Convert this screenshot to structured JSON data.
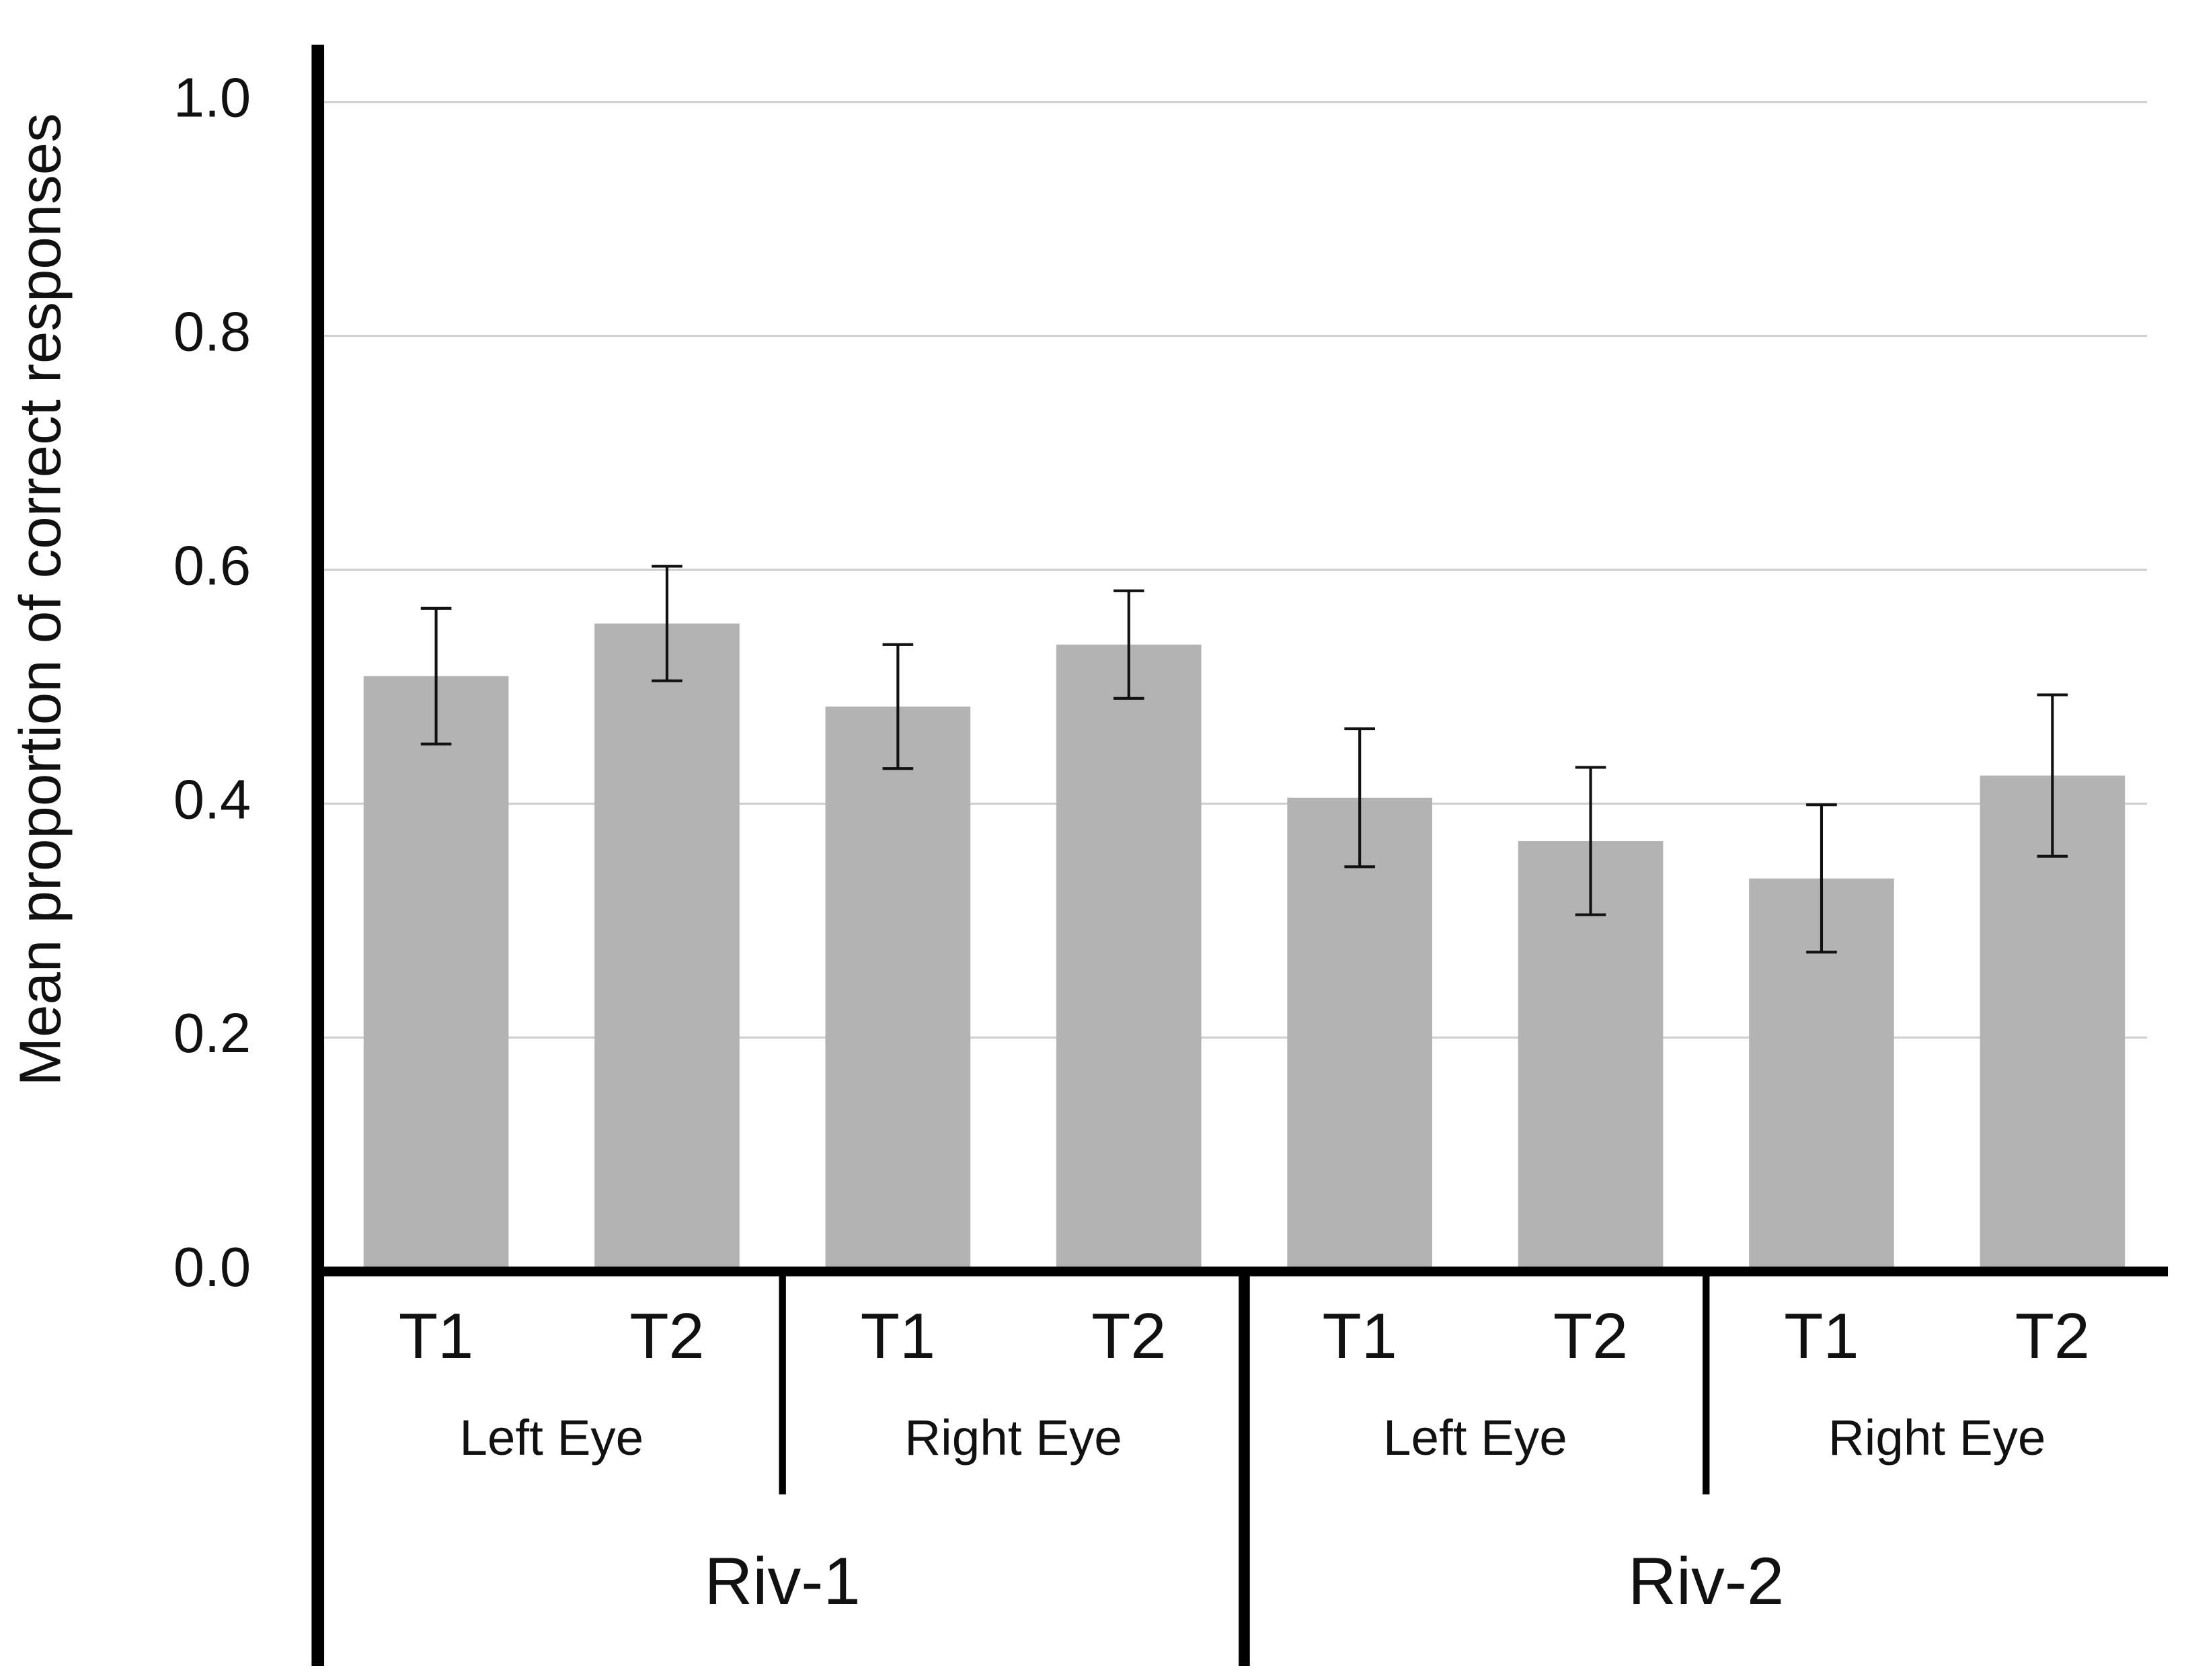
{
  "chart_data": {
    "type": "bar",
    "y_label": "Mean proportion of correct responses",
    "categories": [
      "T1",
      "T2",
      "T1",
      "T2",
      "T1",
      "T2",
      "T1",
      "T2"
    ],
    "subgroups": [
      "Left Eye",
      "Right Eye",
      "Left Eye",
      "Right Eye"
    ],
    "groups": [
      "Riv-1",
      "Riv-2"
    ],
    "values": [
      0.509,
      0.554,
      0.483,
      0.536,
      0.405,
      0.368,
      0.336,
      0.424
    ],
    "errors": [
      0.058,
      0.049,
      0.053,
      0.046,
      0.059,
      0.063,
      0.063,
      0.069
    ],
    "color": "#b3b3b3",
    "ylim": [
      0,
      1.0
    ],
    "yticks": [
      {
        "value": 0,
        "label": "0.0"
      },
      {
        "value": 0.2,
        "label": "0.2"
      },
      {
        "value": 0.4,
        "label": "0.4"
      },
      {
        "value": 0.6,
        "label": "0.6"
      },
      {
        "value": 0.8,
        "label": "0.8"
      },
      {
        "value": 1.0,
        "label": "1.0"
      }
    ],
    "grid": true
  }
}
